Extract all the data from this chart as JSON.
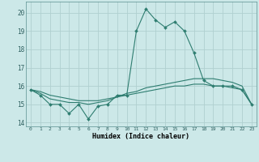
{
  "xlabel": "Humidex (Indice chaleur)",
  "x": [
    0,
    1,
    2,
    3,
    4,
    5,
    6,
    7,
    8,
    9,
    10,
    11,
    12,
    13,
    14,
    15,
    16,
    17,
    18,
    19,
    20,
    21,
    22,
    23
  ],
  "line1": [
    15.8,
    15.5,
    15.0,
    15.0,
    14.5,
    15.0,
    14.2,
    14.9,
    15.0,
    15.5,
    15.5,
    19.0,
    20.2,
    19.6,
    19.2,
    19.5,
    19.0,
    17.8,
    16.3,
    16.0,
    16.0,
    16.0,
    15.8,
    15.0
  ],
  "line2": [
    15.8,
    15.6,
    15.3,
    15.2,
    15.1,
    15.1,
    15.0,
    15.1,
    15.2,
    15.4,
    15.6,
    15.7,
    15.9,
    16.0,
    16.1,
    16.2,
    16.3,
    16.4,
    16.4,
    16.4,
    16.3,
    16.2,
    16.0,
    15.0
  ],
  "line3": [
    15.8,
    15.7,
    15.5,
    15.4,
    15.3,
    15.2,
    15.2,
    15.2,
    15.3,
    15.4,
    15.5,
    15.6,
    15.7,
    15.8,
    15.9,
    16.0,
    16.0,
    16.1,
    16.1,
    16.0,
    16.0,
    15.9,
    15.8,
    15.0
  ],
  "line_color": "#2e7d70",
  "bg_color": "#cce8e8",
  "grid_color": "#b0d0d0",
  "ylim": [
    13.8,
    20.6
  ],
  "yticks": [
    14,
    15,
    16,
    17,
    18,
    19,
    20
  ]
}
